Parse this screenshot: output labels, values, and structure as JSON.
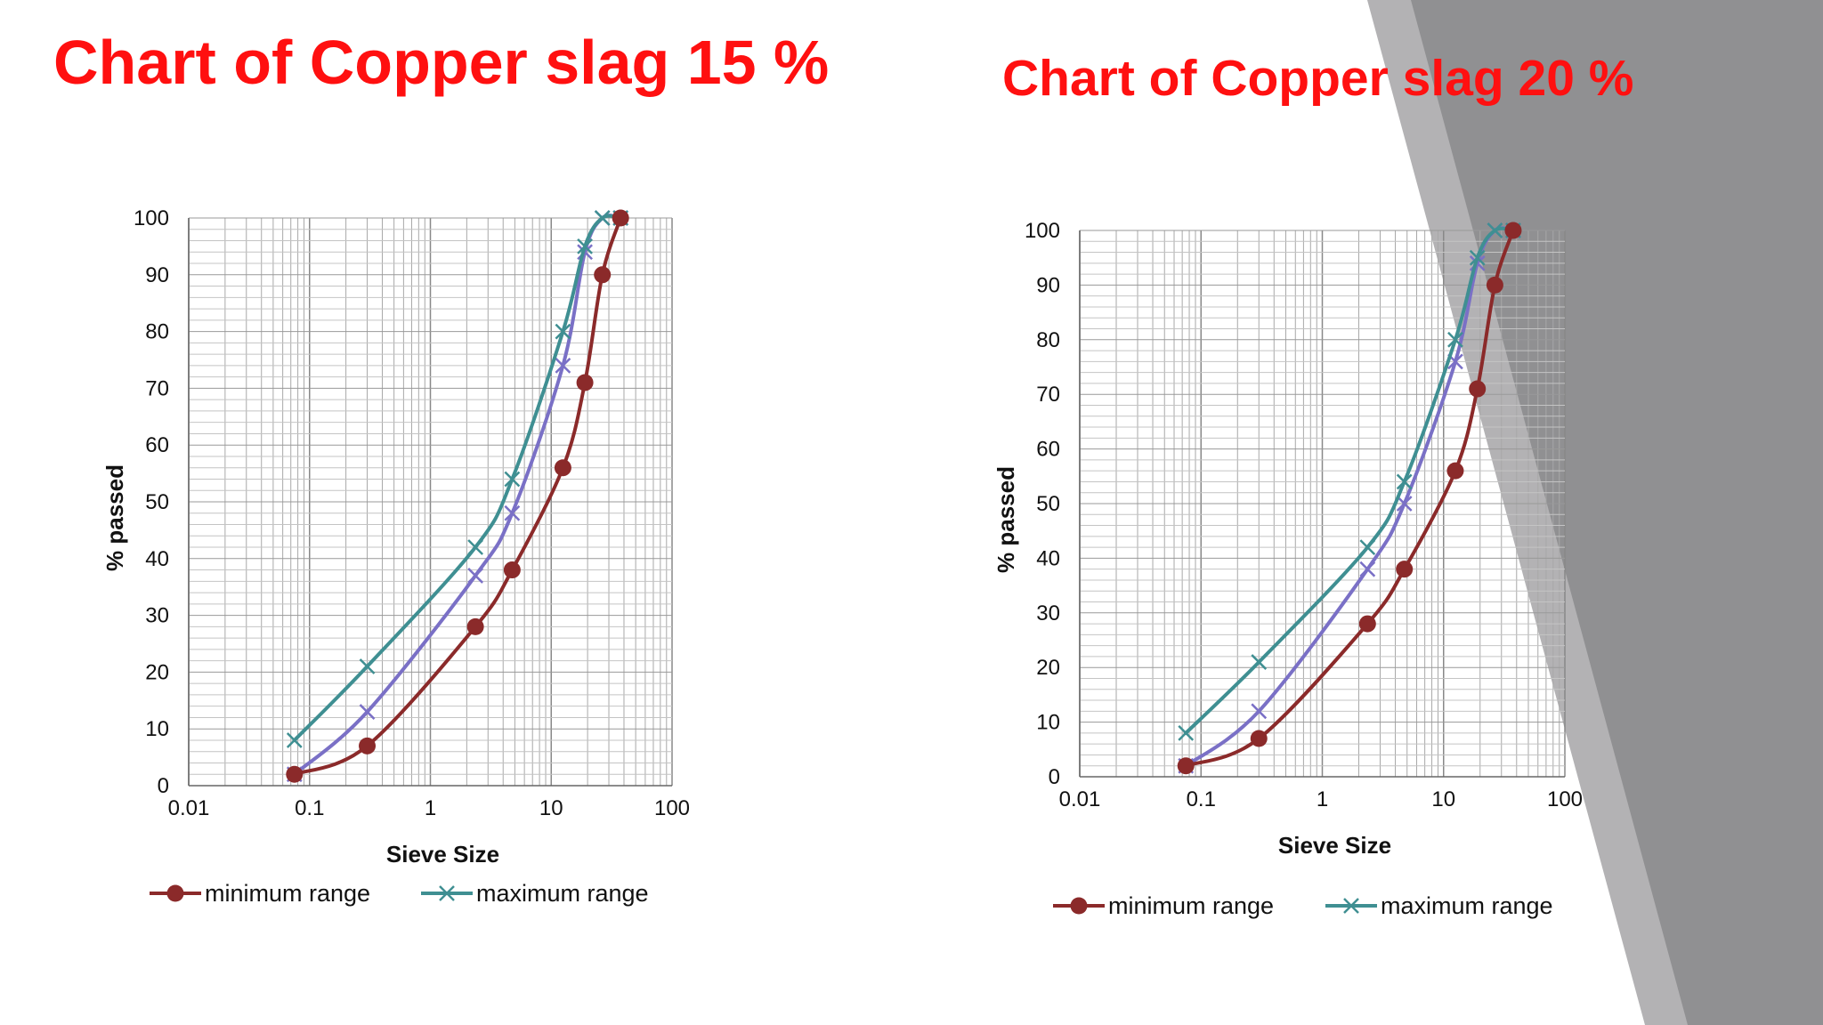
{
  "slide": {
    "background": "#ffffff",
    "decor_colors": [
      "#b3b2b4",
      "#909092"
    ]
  },
  "colors": {
    "title": "#ff1010",
    "minimum_range": "#8b2a2a",
    "maximum_range": "#3f8f92",
    "middle_curve": "#7a70c6",
    "grid": "#a8a8a8",
    "axis": "#666666"
  },
  "titles": {
    "left": "Chart of Copper slag 15 %",
    "right": "Chart of Copper slag 20 %"
  },
  "chart_data": [
    {
      "type": "line",
      "title": "",
      "xlabel": "Sieve Size",
      "ylabel": "% passed",
      "x_scale": "log",
      "xlim": [
        0.01,
        100
      ],
      "ylim": [
        0,
        100
      ],
      "xticks": [
        "0.01",
        "0.1",
        "1",
        "10",
        "100"
      ],
      "yticks": [
        "0",
        "10",
        "20",
        "30",
        "40",
        "50",
        "60",
        "70",
        "80",
        "90",
        "100"
      ],
      "grid": true,
      "legend_position": "bottom",
      "series": [
        {
          "name": "minimum range",
          "marker": "circle",
          "x": [
            0.075,
            0.3,
            2.36,
            4.75,
            12.5,
            19,
            26.5,
            37.5
          ],
          "y": [
            2,
            7,
            28,
            38,
            56,
            71,
            90,
            100
          ]
        },
        {
          "name": "maximum range",
          "marker": "x",
          "x": [
            0.075,
            0.3,
            2.36,
            4.75,
            12.5,
            19,
            26.5,
            37.5
          ],
          "y": [
            8,
            21,
            42,
            54,
            80,
            95,
            100,
            100
          ]
        },
        {
          "name": "",
          "marker": "x",
          "x": [
            0.075,
            0.3,
            2.36,
            4.75,
            12.5,
            19,
            26.5,
            37.5
          ],
          "y": [
            2,
            13,
            37,
            48,
            74,
            94,
            100,
            100
          ]
        }
      ]
    },
    {
      "type": "line",
      "title": "",
      "xlabel": "Sieve Size",
      "ylabel": "% passed",
      "x_scale": "log",
      "xlim": [
        0.01,
        100
      ],
      "ylim": [
        0,
        100
      ],
      "xticks": [
        "0.01",
        "0.1",
        "1",
        "10",
        "100"
      ],
      "yticks": [
        "0",
        "10",
        "20",
        "30",
        "40",
        "50",
        "60",
        "70",
        "80",
        "90",
        "100"
      ],
      "grid": true,
      "legend_position": "bottom",
      "series": [
        {
          "name": "minimum range",
          "marker": "circle",
          "x": [
            0.075,
            0.3,
            2.36,
            4.75,
            12.5,
            19,
            26.5,
            37.5
          ],
          "y": [
            2,
            7,
            28,
            38,
            56,
            71,
            90,
            100
          ]
        },
        {
          "name": "maximum range",
          "marker": "x",
          "x": [
            0.075,
            0.3,
            2.36,
            4.75,
            12.5,
            19,
            26.5,
            37.5
          ],
          "y": [
            8,
            21,
            42,
            54,
            80,
            95,
            100,
            100
          ]
        },
        {
          "name": "",
          "marker": "x",
          "x": [
            0.075,
            0.3,
            2.36,
            4.75,
            12.5,
            19,
            26.5,
            37.5
          ],
          "y": [
            2,
            12,
            38,
            50,
            76,
            94,
            100,
            100
          ]
        }
      ]
    }
  ]
}
